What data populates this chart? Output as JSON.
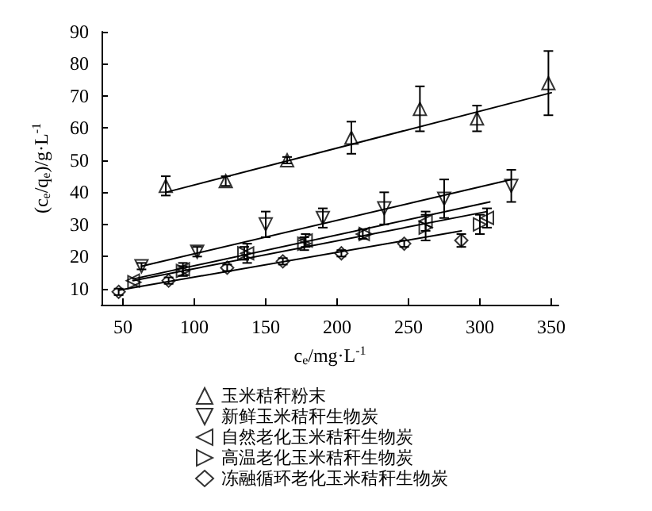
{
  "chart_data": {
    "type": "scatter",
    "xlabel": "c$_{e}$/mg·L$^{-1}$",
    "ylabel": "(c$_{e}$/q$_{e}$)/g·L$^{-1}$",
    "xlim": [
      35,
      355
    ],
    "ylim": [
      5,
      90
    ],
    "xticks": [
      50,
      100,
      150,
      200,
      250,
      300,
      350
    ],
    "yticks": [
      10,
      20,
      30,
      40,
      50,
      60,
      70,
      80,
      90
    ],
    "grid": false,
    "legend": "bottom",
    "marker": "triangle",
    "series": [
      {
        "name": "玉米秸秆粉末",
        "color": "#000000",
        "x": [
          80,
          122,
          165,
          210,
          258,
          298,
          348
        ],
        "values": [
          42,
          43.5,
          50,
          57,
          66,
          63,
          74
        ],
        "errors": [
          3,
          1.5,
          1,
          5,
          7,
          4,
          10
        ]
      },
      {
        "name": "新鲜玉米秸秆生物炭",
        "color": "#000000",
        "x": [
          63,
          102,
          150,
          190,
          233,
          275,
          322
        ],
        "values": [
          17,
          21.5,
          30,
          32,
          35,
          38,
          42
        ],
        "errors": [
          1,
          1.5,
          4,
          3,
          5,
          6,
          5
        ]
      },
      {
        "name": "自然老化玉米秸秆生物炭",
        "color": "#000000",
        "x": [
          57,
          92,
          137,
          178,
          218,
          262,
          305
        ],
        "values": [
          12.5,
          16,
          21,
          25,
          27,
          31,
          32
        ],
        "errors": [
          null,
          2,
          3,
          2,
          1.5,
          3,
          3
        ]
      },
      {
        "name": "高温老化玉米秸秆生物炭",
        "color": "#000000",
        "x": [
          58,
          92,
          135,
          177,
          220,
          262,
          300
        ],
        "values": [
          12,
          15.5,
          21,
          24,
          27,
          29,
          30
        ],
        "errors": [
          null,
          1.5,
          2,
          2,
          null,
          4,
          3
        ]
      },
      {
        "name": "冻融循环老化玉米秸秆生物炭",
        "color": "#000000",
        "marker": "diamond",
        "x": [
          47,
          82,
          123,
          162,
          203,
          247,
          287
        ],
        "values": [
          9,
          12.5,
          16.5,
          18.5,
          21,
          24,
          25
        ],
        "errors": [
          1,
          1,
          1,
          1,
          1,
          1,
          2
        ]
      },
      {
        "type": "line",
        "color": "#000000",
        "marker": "none",
        "x": [
          80,
          350
        ],
        "values": [
          40,
          71
        ]
      },
      {
        "type": "line",
        "color": "#000000",
        "marker": "none",
        "x": [
          63,
          322
        ],
        "values": [
          17,
          44
        ]
      },
      {
        "type": "line",
        "color": "#000000",
        "marker": "none",
        "x": [
          57,
          307
        ],
        "values": [
          13,
          37
        ]
      },
      {
        "type": "line",
        "color": "#000000",
        "marker": "none",
        "x": [
          57,
          305
        ],
        "values": [
          12.5,
          34
        ]
      },
      {
        "type": "line",
        "color": "#000000",
        "marker": "none",
        "x": [
          47,
          287
        ],
        "values": [
          9.5,
          28
        ]
      }
    ]
  }
}
